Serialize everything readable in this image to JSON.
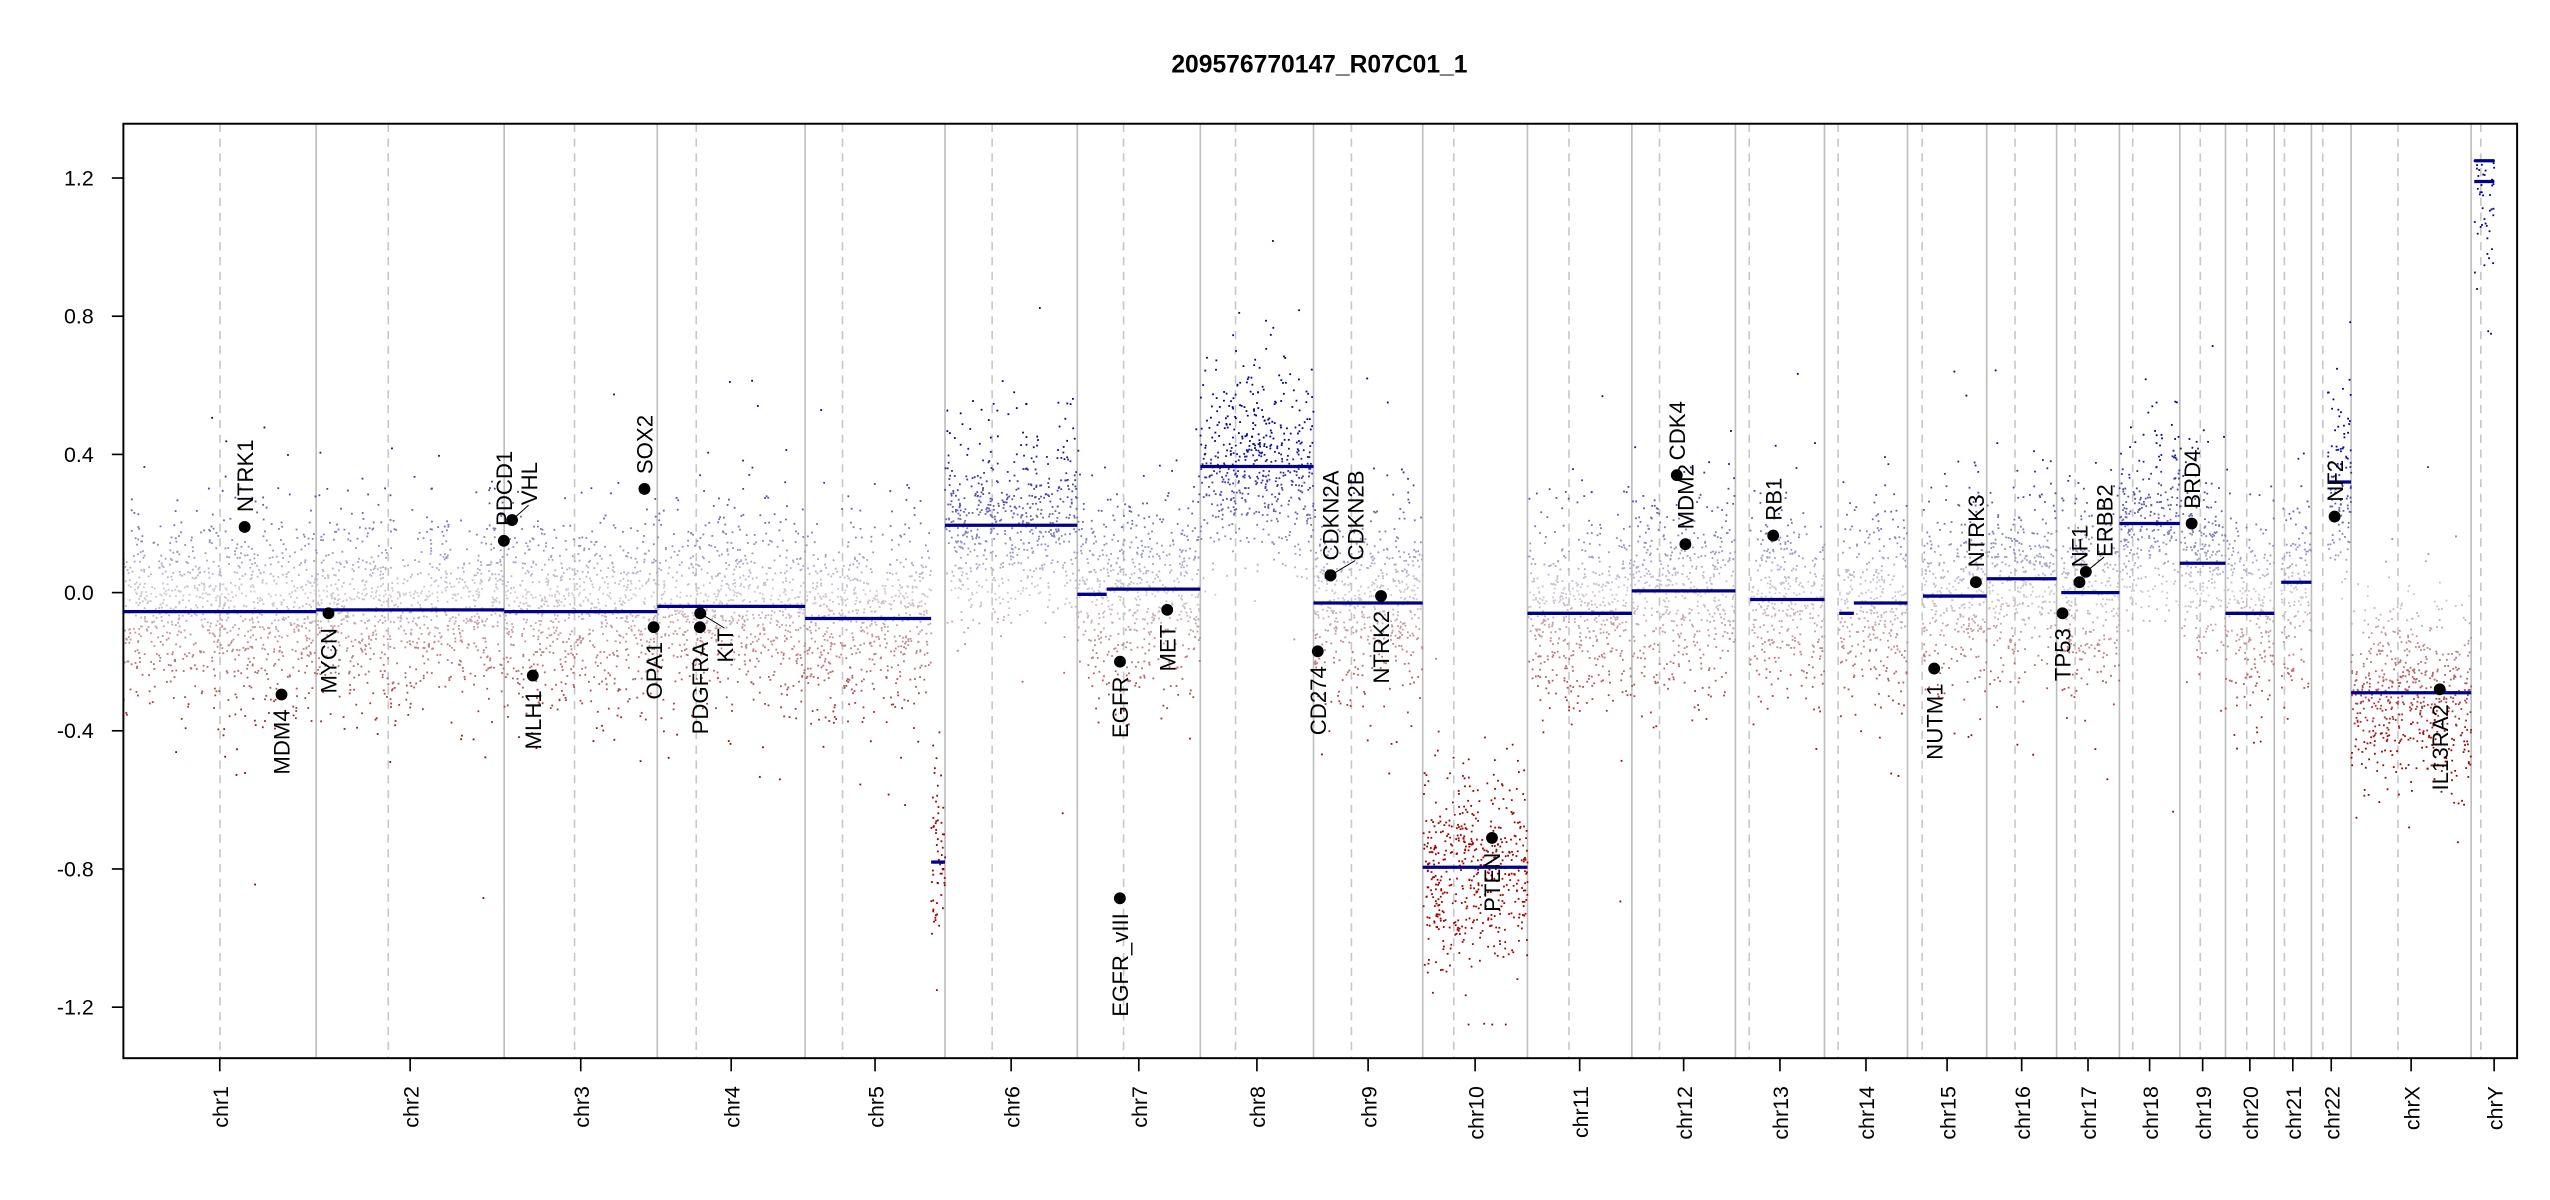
{
  "chart_data": {
    "type": "scatter",
    "title": "209576770147_R07C01_1",
    "xlabel": "",
    "ylabel": "",
    "ylim": [
      -1.35,
      1.35
    ],
    "yticks": [
      1.2,
      0.8,
      0.4,
      0.0,
      -0.4,
      -0.8,
      -1.2
    ],
    "ytick_labels": [
      "1.2",
      "0.8",
      "0.4",
      "0.0",
      "-0.4",
      "-0.8",
      "-1.2"
    ],
    "x_units": "Mb (genome position)",
    "grid": false,
    "legend": "none",
    "colors": {
      "gain": "#00008b",
      "loss": "#a00000",
      "neutral": "#c8c8d0",
      "segment": "#00008b",
      "gene": "#000000",
      "boundary": "#bebebe"
    },
    "chromosomes": [
      {
        "name": "chr1",
        "length": 249.25,
        "centromere": 125.0,
        "acro": false
      },
      {
        "name": "chr2",
        "length": 243.2,
        "centromere": 93.3,
        "acro": false
      },
      {
        "name": "chr3",
        "length": 198.0,
        "centromere": 91.0,
        "acro": false
      },
      {
        "name": "chr4",
        "length": 191.15,
        "centromere": 50.4,
        "acro": false
      },
      {
        "name": "chr5",
        "length": 180.9,
        "centromere": 48.4,
        "acro": false
      },
      {
        "name": "chr6",
        "length": 171.1,
        "centromere": 61.0,
        "acro": false
      },
      {
        "name": "chr7",
        "length": 159.1,
        "centromere": 59.9,
        "acro": false
      },
      {
        "name": "chr8",
        "length": 146.4,
        "centromere": 45.6,
        "acro": false
      },
      {
        "name": "chr9",
        "length": 141.2,
        "centromere": 49.0,
        "acro": false
      },
      {
        "name": "chr10",
        "length": 135.5,
        "centromere": 40.2,
        "acro": false
      },
      {
        "name": "chr11",
        "length": 135.0,
        "centromere": 53.7,
        "acro": false
      },
      {
        "name": "chr12",
        "length": 133.9,
        "centromere": 35.8,
        "acro": false
      },
      {
        "name": "chr13",
        "length": 115.2,
        "centromere": 17.9,
        "acro": true
      },
      {
        "name": "chr14",
        "length": 107.3,
        "centromere": 17.6,
        "acro": true
      },
      {
        "name": "chr15",
        "length": 102.5,
        "centromere": 19.0,
        "acro": true
      },
      {
        "name": "chr16",
        "length": 90.4,
        "centromere": 36.6,
        "acro": false
      },
      {
        "name": "chr17",
        "length": 81.2,
        "centromere": 24.0,
        "acro": false
      },
      {
        "name": "chr18",
        "length": 78.1,
        "centromere": 17.2,
        "acro": false
      },
      {
        "name": "chr19",
        "length": 59.1,
        "centromere": 26.5,
        "acro": false
      },
      {
        "name": "chr20",
        "length": 63.0,
        "centromere": 27.5,
        "acro": false
      },
      {
        "name": "chr21",
        "length": 48.1,
        "centromere": 13.2,
        "acro": true
      },
      {
        "name": "chr22",
        "length": 51.3,
        "centromere": 14.7,
        "acro": true
      },
      {
        "name": "chrX",
        "length": 155.3,
        "centromere": 60.6,
        "acro": false
      },
      {
        "name": "chrY",
        "length": 59.4,
        "centromere": 12.5,
        "acro": false
      }
    ],
    "segments": [
      {
        "chrom": "chr1",
        "start": 0,
        "end": 249.25,
        "value": -0.055
      },
      {
        "chrom": "chr2",
        "start": 0,
        "end": 243.2,
        "value": -0.05
      },
      {
        "chrom": "chr3",
        "start": 0,
        "end": 198.0,
        "value": -0.055
      },
      {
        "chrom": "chr4",
        "start": 0,
        "end": 191.15,
        "value": -0.04
      },
      {
        "chrom": "chr5",
        "start": 0,
        "end": 163.0,
        "value": -0.075
      },
      {
        "chrom": "chr5",
        "start": 163.0,
        "end": 180.9,
        "value": -0.78
      },
      {
        "chrom": "chr6",
        "start": 0,
        "end": 171.1,
        "value": 0.195
      },
      {
        "chrom": "chr7",
        "start": 0,
        "end": 38.0,
        "value": -0.005
      },
      {
        "chrom": "chr7",
        "start": 38.0,
        "end": 159.1,
        "value": 0.01
      },
      {
        "chrom": "chr8",
        "start": 0,
        "end": 146.4,
        "value": 0.365
      },
      {
        "chrom": "chr9",
        "start": 0,
        "end": 141.2,
        "value": -0.03
      },
      {
        "chrom": "chr10",
        "start": 0,
        "end": 135.5,
        "value": -0.795
      },
      {
        "chrom": "chr11",
        "start": 0,
        "end": 135.0,
        "value": -0.06
      },
      {
        "chrom": "chr12",
        "start": 0,
        "end": 133.9,
        "value": 0.005
      },
      {
        "chrom": "chr13",
        "start": 19.0,
        "end": 115.2,
        "value": -0.02
      },
      {
        "chrom": "chr14",
        "start": 19.0,
        "end": 38.0,
        "value": -0.06
      },
      {
        "chrom": "chr14",
        "start": 38.0,
        "end": 107.3,
        "value": -0.03
      },
      {
        "chrom": "chr15",
        "start": 20.0,
        "end": 102.5,
        "value": -0.01
      },
      {
        "chrom": "chr16",
        "start": 0,
        "end": 90.4,
        "value": 0.04
      },
      {
        "chrom": "chr17",
        "start": 6.0,
        "end": 81.2,
        "value": 0.0
      },
      {
        "chrom": "chr18",
        "start": 0,
        "end": 78.1,
        "value": 0.2
      },
      {
        "chrom": "chr19",
        "start": 0,
        "end": 59.1,
        "value": 0.085
      },
      {
        "chrom": "chr20",
        "start": 0,
        "end": 63.0,
        "value": -0.06
      },
      {
        "chrom": "chr21",
        "start": 9.0,
        "end": 48.1,
        "value": 0.03
      },
      {
        "chrom": "chr22",
        "start": 21.0,
        "end": 51.3,
        "value": 0.32
      },
      {
        "chrom": "chrX",
        "start": 0,
        "end": 155.3,
        "value": -0.29
      },
      {
        "chrom": "chrY",
        "start": 4.0,
        "end": 30.0,
        "value": 1.25
      },
      {
        "chrom": "chrY",
        "start": 4.0,
        "end": 30.0,
        "value": 1.19
      }
    ],
    "genes": [
      {
        "name": "NTRK1",
        "chrom": "chr1",
        "pos": 156.8,
        "value": 0.19
      },
      {
        "name": "MDM4",
        "chrom": "chr1",
        "pos": 204.5,
        "value": -0.295
      },
      {
        "name": "MYCN",
        "chrom": "chr2",
        "pos": 16.0,
        "value": -0.06
      },
      {
        "name": "PDCD1",
        "chrom": "chr2",
        "pos": 242.8,
        "value": 0.15
      },
      {
        "name": "VHL",
        "chrom": "chr3",
        "pos": 10.2,
        "value": 0.21
      },
      {
        "name": "MLH1",
        "chrom": "chr3",
        "pos": 37.0,
        "value": -0.24
      },
      {
        "name": "SOX2",
        "chrom": "chr3",
        "pos": 181.4,
        "value": 0.3
      },
      {
        "name": "OPA1",
        "chrom": "chr3",
        "pos": 193.3,
        "value": -0.1
      },
      {
        "name": "PDGFRA",
        "chrom": "chr4",
        "pos": 55.1,
        "value": -0.1
      },
      {
        "name": "KIT",
        "chrom": "chr4",
        "pos": 55.5,
        "value": -0.06
      },
      {
        "name": "EGFR_vIII",
        "chrom": "chr7",
        "pos": 55.1,
        "value": -0.885
      },
      {
        "name": "EGFR",
        "chrom": "chr7",
        "pos": 55.2,
        "value": -0.2
      },
      {
        "name": "MET",
        "chrom": "chr7",
        "pos": 116.3,
        "value": -0.05
      },
      {
        "name": "CD274",
        "chrom": "chr9",
        "pos": 5.5,
        "value": -0.17
      },
      {
        "name": "CDKN2A",
        "chrom": "chr9",
        "pos": 21.97,
        "value": 0.05
      },
      {
        "name": "CDKN2B",
        "chrom": "chr9",
        "pos": 22.0,
        "value": 0.05
      },
      {
        "name": "NTRK2",
        "chrom": "chr9",
        "pos": 87.3,
        "value": -0.01
      },
      {
        "name": "PTEN",
        "chrom": "chr10",
        "pos": 89.6,
        "value": -0.71
      },
      {
        "name": "CDK4",
        "chrom": "chr12",
        "pos": 58.1,
        "value": 0.34
      },
      {
        "name": "MDM2",
        "chrom": "chr12",
        "pos": 69.2,
        "value": 0.14
      },
      {
        "name": "RB1",
        "chrom": "chr13",
        "pos": 48.9,
        "value": 0.165
      },
      {
        "name": "NUTM1",
        "chrom": "chr15",
        "pos": 34.6,
        "value": -0.22
      },
      {
        "name": "NTRK3",
        "chrom": "chr15",
        "pos": 88.5,
        "value": 0.03
      },
      {
        "name": "TP53",
        "chrom": "chr17",
        "pos": 7.6,
        "value": -0.06
      },
      {
        "name": "NF1",
        "chrom": "chr17",
        "pos": 29.5,
        "value": 0.03
      },
      {
        "name": "ERBB2",
        "chrom": "chr17",
        "pos": 37.8,
        "value": 0.06
      },
      {
        "name": "BRD4",
        "chrom": "chr19",
        "pos": 15.3,
        "value": 0.2
      },
      {
        "name": "NF2",
        "chrom": "chr22",
        "pos": 30.0,
        "value": 0.22
      },
      {
        "name": "IL13RA2",
        "chrom": "chrX",
        "pos": 114.6,
        "value": -0.28
      }
    ]
  }
}
